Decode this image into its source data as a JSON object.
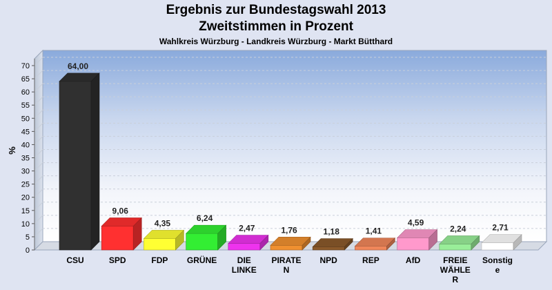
{
  "chart_data": {
    "type": "bar",
    "title": "Ergebnis zur Bundestagswahl 2013",
    "title_line2": "Zweitstimmen in Prozent",
    "subtitle": "Wahlkreis Würzburg - Landkreis Würzburg - Markt Bütthard",
    "ylabel": "%",
    "xlabel": "",
    "ylim": [
      0,
      70
    ],
    "yticks": [
      0,
      5,
      10,
      15,
      20,
      25,
      30,
      35,
      40,
      45,
      50,
      55,
      60,
      65,
      70
    ],
    "grid": true,
    "categories": [
      [
        "CSU"
      ],
      [
        "SPD"
      ],
      [
        "FDP"
      ],
      [
        "GRÜNE"
      ],
      [
        "DIE",
        "LINKE"
      ],
      [
        "PIRATE",
        "N"
      ],
      [
        "NPD"
      ],
      [
        "REP"
      ],
      [
        "AfD"
      ],
      [
        "FREIE",
        "WÄHLE",
        "R"
      ],
      [
        "Sonstig",
        "e"
      ]
    ],
    "values": [
      64.0,
      9.06,
      4.35,
      6.24,
      2.47,
      1.76,
      1.18,
      1.41,
      4.59,
      2.24,
      2.71
    ],
    "value_labels": [
      "64,00",
      "9,06",
      "4,35",
      "6,24",
      "2,47",
      "1,76",
      "1,18",
      "1,41",
      "4,59",
      "2,24",
      "2,71"
    ],
    "colors": [
      "#303030",
      "#ff3030",
      "#ffff33",
      "#33ee33",
      "#ee33ee",
      "#f09030",
      "#8b5a2b",
      "#f0865a",
      "#ff99cc",
      "#99ee99",
      "#ffffff"
    ]
  }
}
